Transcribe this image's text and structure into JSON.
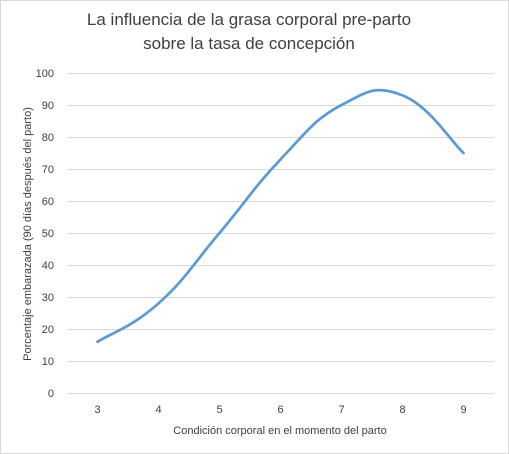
{
  "chart_data": {
    "type": "line",
    "title_lines": [
      "La influencia de la grasa corporal pre-parto",
      "sobre la tasa de concepción"
    ],
    "xlabel": "Condición corporal en el momento del parto",
    "ylabel": "Porcentaje embarazada (90 días después del parto)",
    "x": [
      3,
      4,
      5,
      6,
      7,
      8,
      9
    ],
    "xlim": [
      2.5,
      9.5
    ],
    "ylim": [
      0,
      100
    ],
    "y_ticks": [
      0,
      10,
      20,
      30,
      40,
      50,
      60,
      70,
      80,
      90,
      100
    ],
    "x_ticks": [
      3,
      4,
      5,
      6,
      7,
      8,
      9
    ],
    "grid": "horizontal",
    "smooth": true,
    "series": [
      {
        "values": [
          16,
          28,
          50,
          73,
          90,
          93,
          75
        ],
        "color": "#5b9bd5"
      }
    ],
    "colors": {
      "gridline": "#d9d9d9",
      "text": "#404040"
    }
  }
}
